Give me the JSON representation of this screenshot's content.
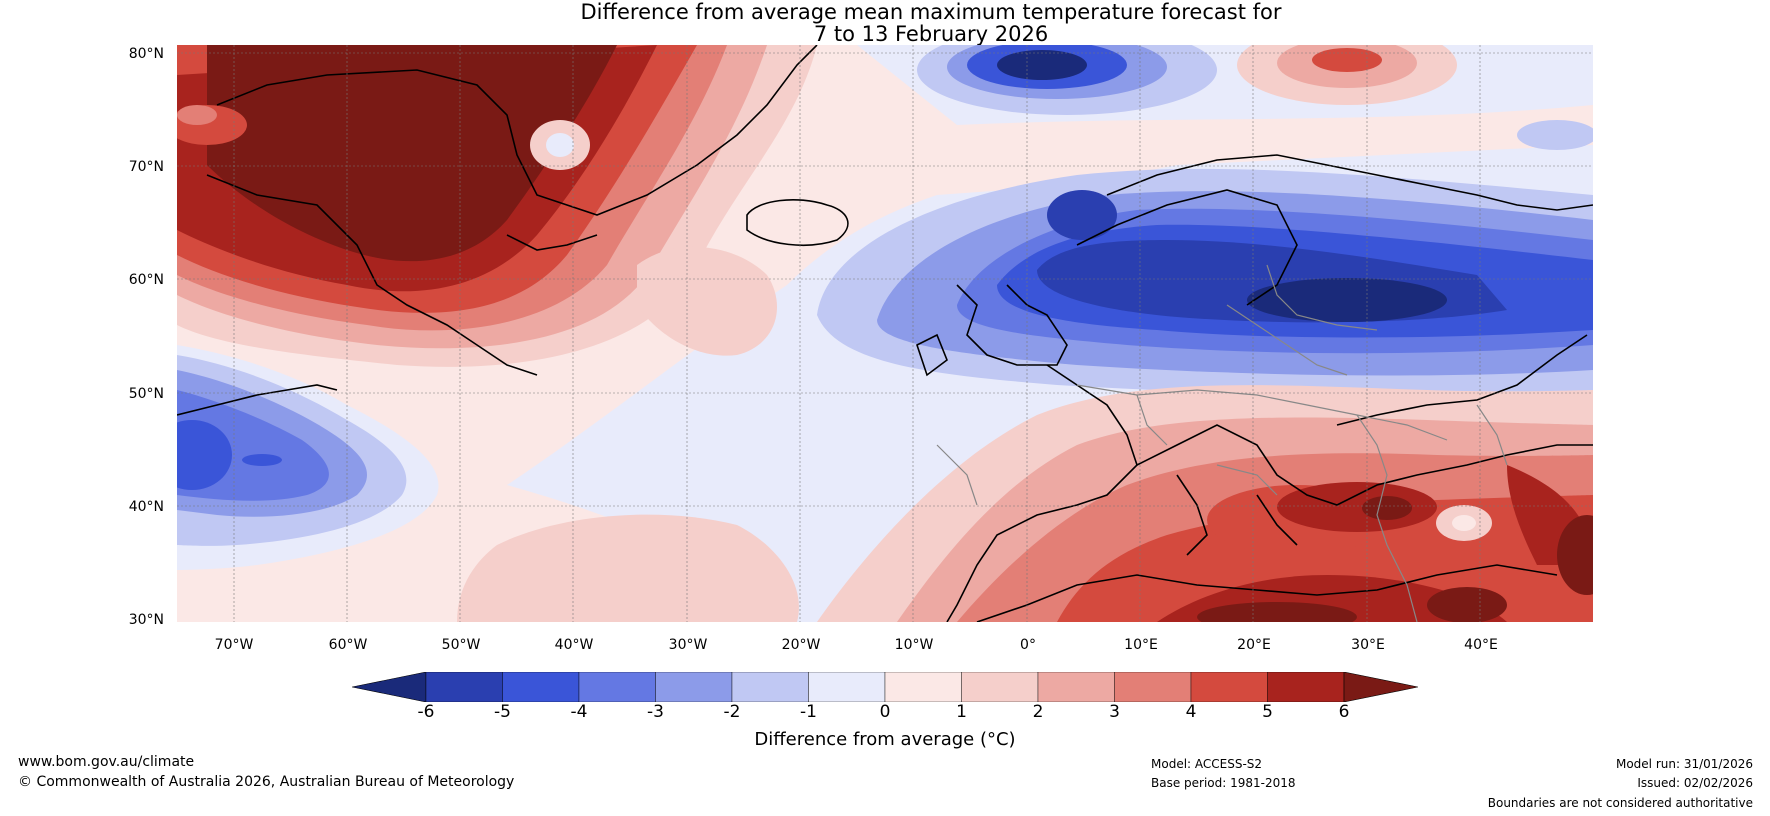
{
  "title": {
    "line1": "Difference from average mean maximum temperature forecast for",
    "line2": "7 to 13 February 2026"
  },
  "map": {
    "lat_ticks": [
      "80°N",
      "70°N",
      "60°N",
      "50°N",
      "40°N",
      "30°N"
    ],
    "lon_ticks": [
      "70°W",
      "60°W",
      "50°W",
      "40°W",
      "30°W",
      "20°W",
      "10°W",
      "0°",
      "10°E",
      "20°E",
      "30°E",
      "40°E"
    ],
    "lat_range": [
      30,
      81
    ],
    "lon_range": [
      -75,
      50
    ]
  },
  "colorbar": {
    "label": "Difference from average (°C)",
    "ticks": [
      "-6",
      "-5",
      "-4",
      "-3",
      "-2",
      "-1",
      "0",
      "1",
      "2",
      "3",
      "4",
      "5",
      "6"
    ],
    "colors": [
      "#1a2a7a",
      "#2a3fb0",
      "#3a55d8",
      "#6478e3",
      "#8c9be9",
      "#c0c8f3",
      "#e8ebfb",
      "#fbe8e6",
      "#f5cfcb",
      "#eda9a3",
      "#e37f76",
      "#d44a3e",
      "#a8231e",
      "#7a1a15"
    ]
  },
  "footer": {
    "website": "www.bom.gov.au/climate",
    "copyright": "© Commonwealth of Australia 2026, Australian Bureau of Meteorology",
    "model": "Model: ACCESS-S2",
    "base_period": "Base period: 1981-2018",
    "model_run": "Model run: 31/01/2026",
    "issued": "Issued: 02/02/2026",
    "disclaimer": "Boundaries are not considered authoritative"
  }
}
